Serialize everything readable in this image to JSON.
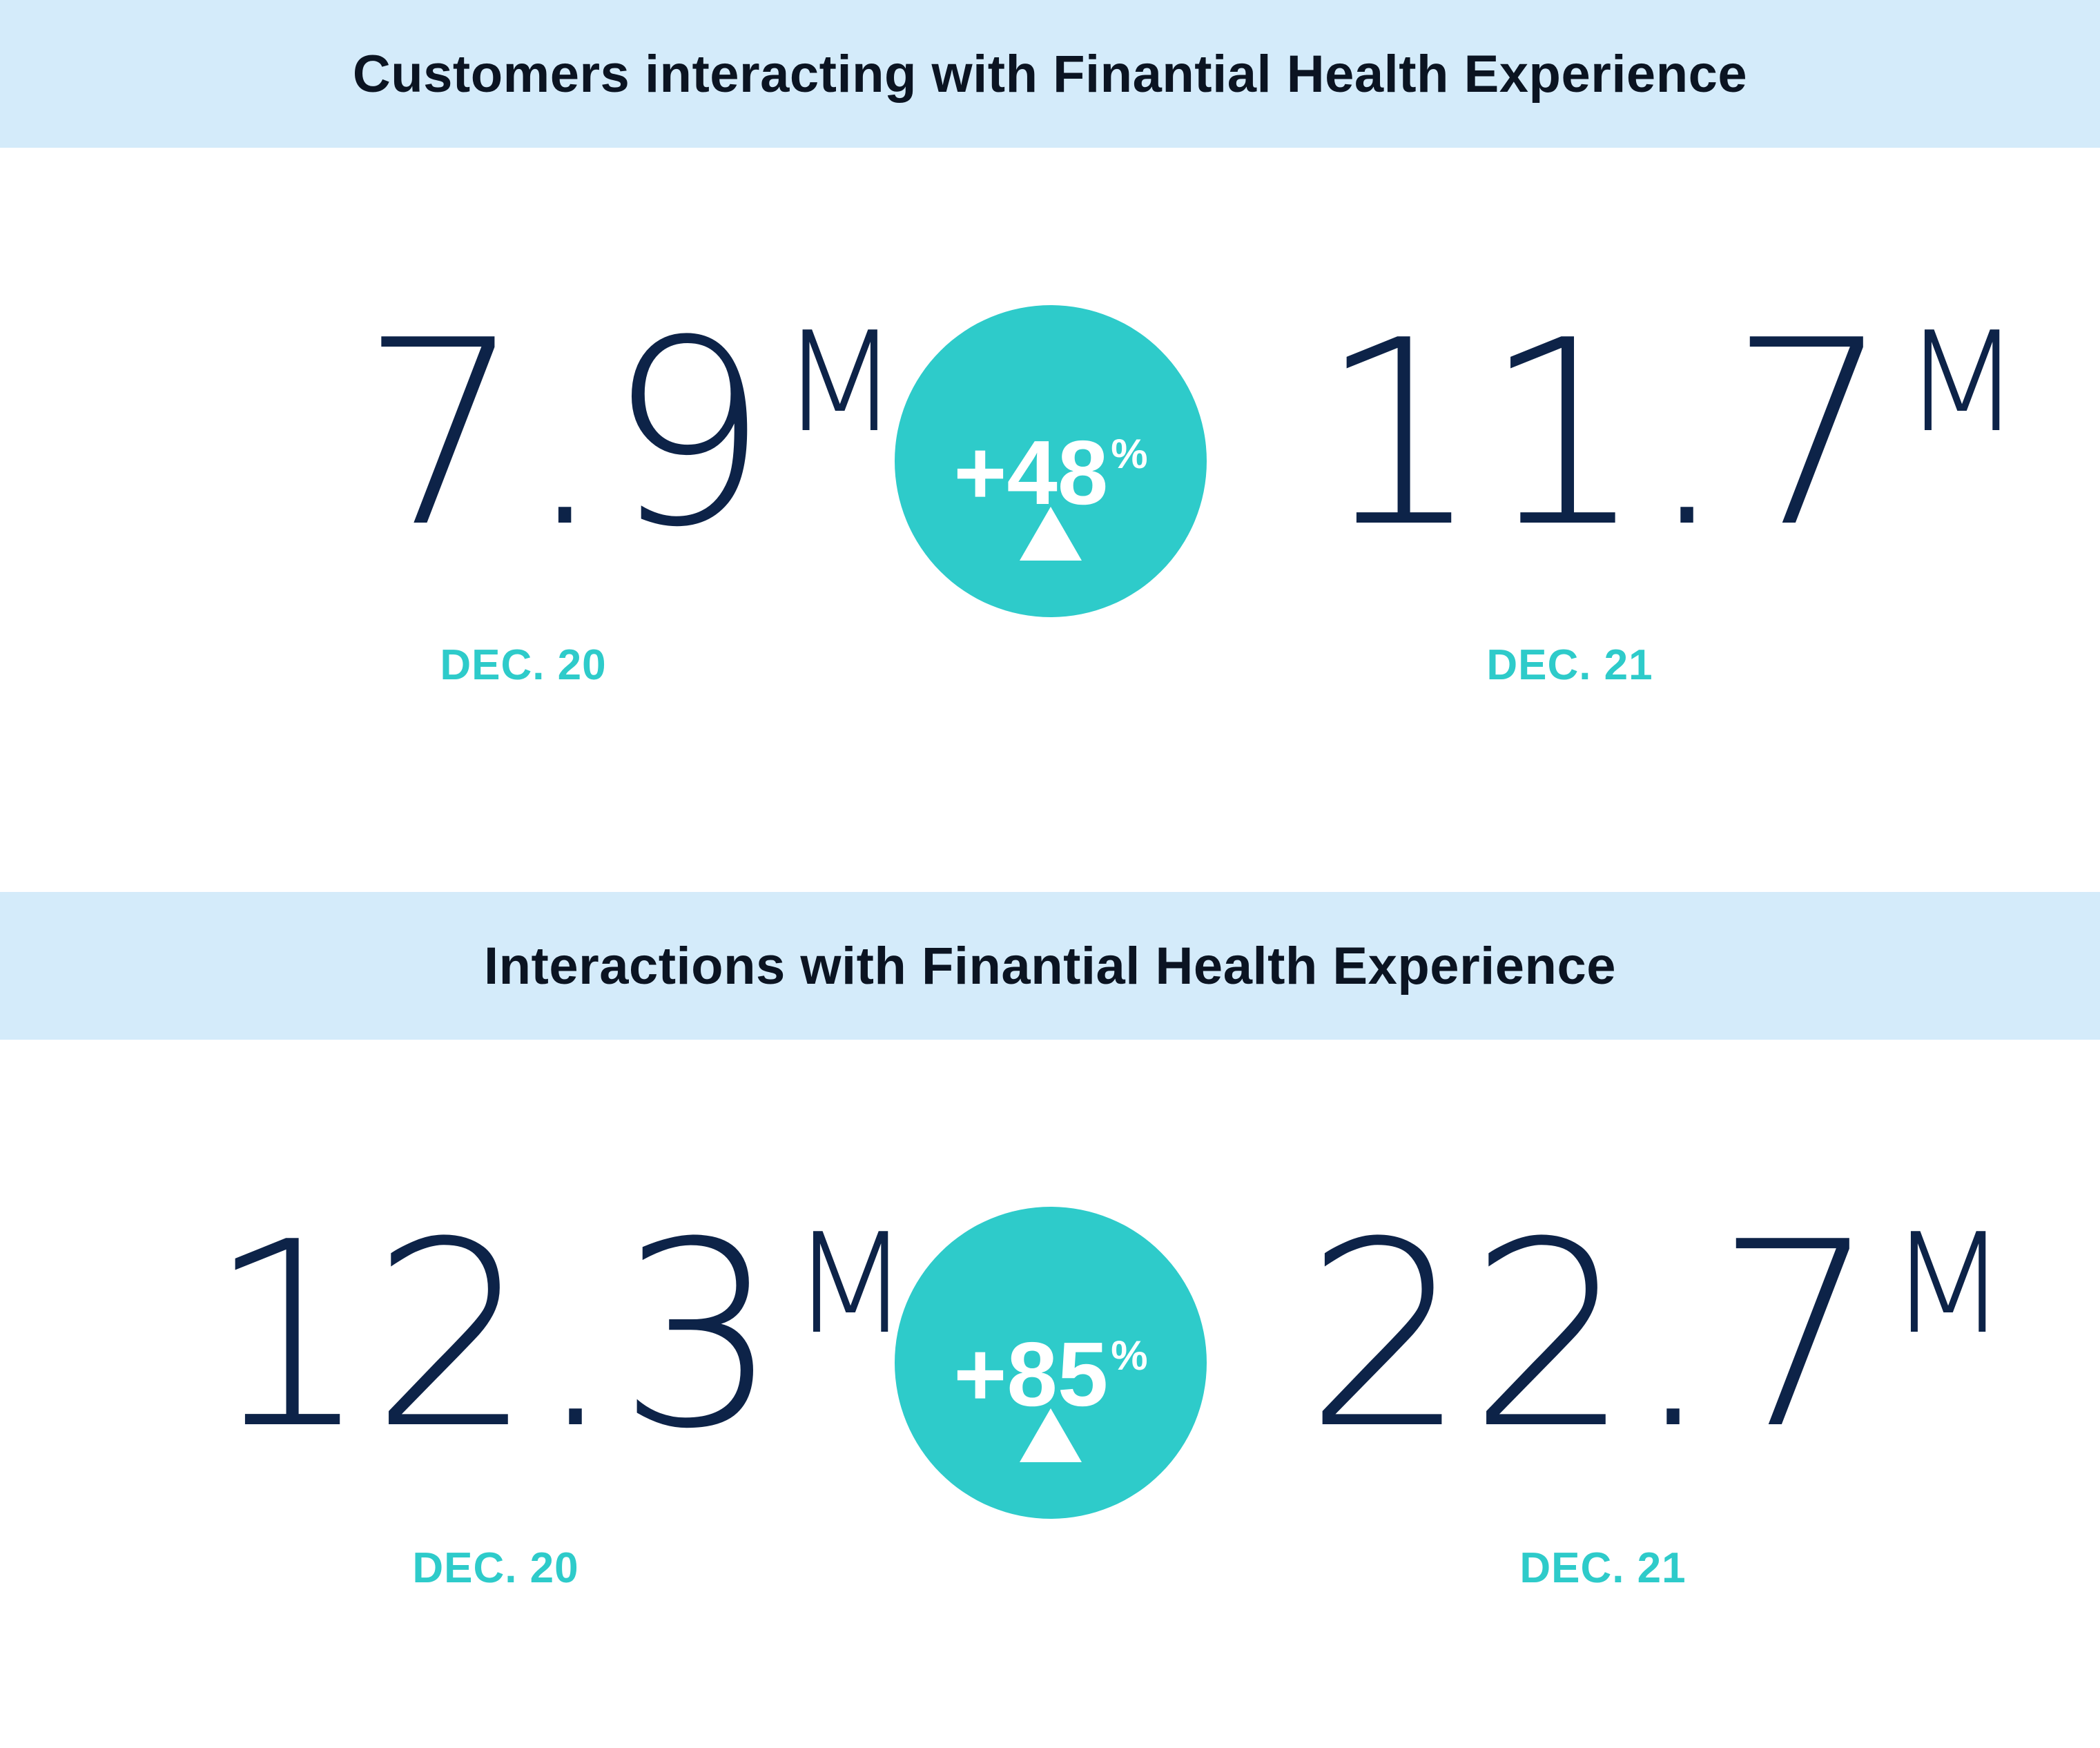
{
  "sections": [
    {
      "title": "Customers interacting with Finantial Health Experience",
      "before": {
        "value": "7.9",
        "unit": "M",
        "label": "DEC. 20"
      },
      "after": {
        "value": "11.7",
        "unit": "M",
        "label": "DEC. 21"
      },
      "change": {
        "value": "+48",
        "sign": "%",
        "icon": "triangle-up-icon"
      }
    },
    {
      "title": "Interactions with Finantial Health Experience",
      "before": {
        "value": "12.3",
        "unit": "M",
        "label": "DEC. 20"
      },
      "after": {
        "value": "22.7",
        "unit": "M",
        "label": "DEC. 21"
      },
      "change": {
        "value": "+85",
        "sign": "%",
        "icon": "triangle-up-icon"
      }
    }
  ],
  "colors": {
    "band": "#d4ebfa",
    "accent": "#2ecbca",
    "number": "#0d2348",
    "title": "#0b1422"
  }
}
